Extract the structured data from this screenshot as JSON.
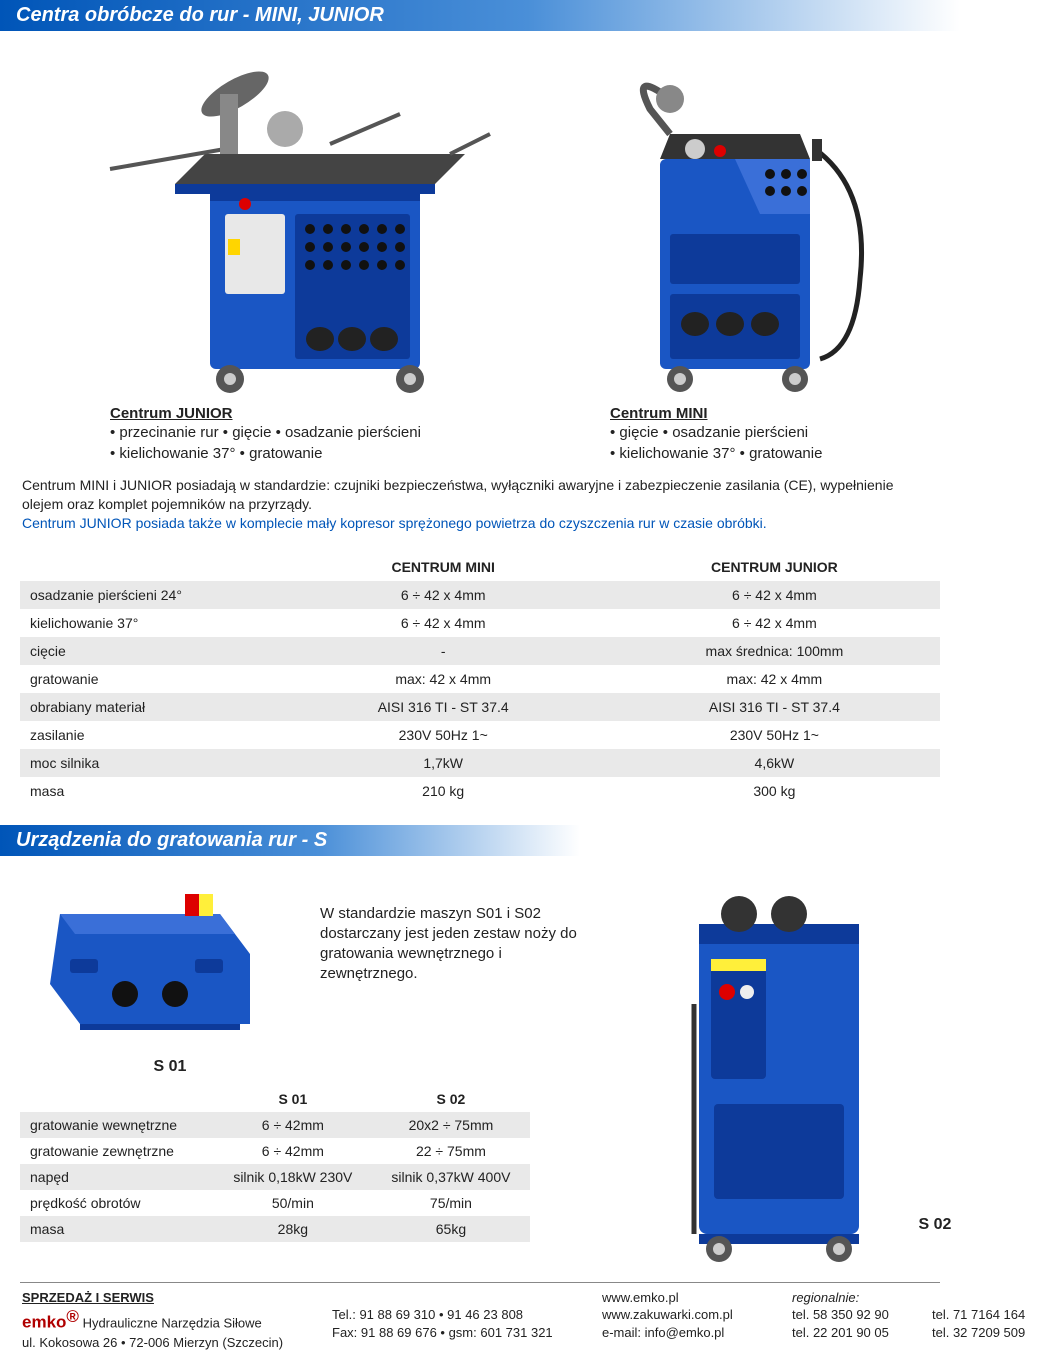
{
  "section1": {
    "header": "Centra obróbcze do rur - MINI, JUNIOR",
    "junior": {
      "title": "Centrum JUNIOR",
      "line1": "• przecinanie rur • gięcie • osadzanie pierścieni",
      "line2": "• kielichowanie 37° • gratowanie"
    },
    "mini": {
      "title": "Centrum  MINI",
      "line1": "• gięcie  • osadzanie pierścieni",
      "line2": "• kielichowanie 37° • gratowanie"
    },
    "intro_black1": "Centrum MINI i JUNIOR posiadają w standardzie: czujniki bezpieczeństwa, wyłączniki awaryjne i zabezpieczenie zasilania (CE), wypełnienie olejem oraz komplet pojemników na przyrządy.",
    "intro_blue": "Centrum JUNIOR posiada także w komplecie mały kopresor sprężonego powietrza do czyszczenia rur w czasie obróbki.",
    "table": {
      "head_mini": "CENTRUM MINI",
      "head_junior": "CENTRUM JUNIOR",
      "rows": [
        {
          "label": "osadzanie pierścieni 24°",
          "mini": "6 ÷ 42 x 4mm",
          "junior": "6 ÷ 42 x 4mm",
          "odd": true
        },
        {
          "label": "kielichowanie 37°",
          "mini": "6 ÷ 42 x 4mm",
          "junior": "6 ÷ 42 x 4mm",
          "odd": false
        },
        {
          "label": "cięcie",
          "mini": "-",
          "junior": "max średnica: 100mm",
          "odd": true
        },
        {
          "label": "gratowanie",
          "mini": "max: 42 x 4mm",
          "junior": "max: 42 x 4mm",
          "odd": false
        },
        {
          "label": "obrabiany materiał",
          "mini": "AISI 316 TI - ST 37.4",
          "junior": "AISI 316 TI - ST 37.4",
          "odd": true
        },
        {
          "label": "zasilanie",
          "mini": "230V 50Hz 1~",
          "junior": "230V 50Hz 1~",
          "odd": false
        },
        {
          "label": "moc silnika",
          "mini": "1,7kW",
          "junior": "4,6kW",
          "odd": true
        },
        {
          "label": "masa",
          "mini": "210 kg",
          "junior": "300 kg",
          "odd": false
        }
      ]
    }
  },
  "section2": {
    "header": "Urządzenia do gratowania rur - S",
    "desc": "W standardzie maszyn S01 i S02 dostarczany jest jeden zestaw noży do gratowania wewnętrznego i zewnętrznego.",
    "s01_label": "S 01",
    "s02_label": "S 02",
    "table": {
      "head_s01": "S 01",
      "head_s02": "S 02",
      "rows": [
        {
          "label": "gratowanie wewnętrzne",
          "s01": "6 ÷ 42mm",
          "s02": "20x2  ÷ 75mm",
          "odd": true
        },
        {
          "label": "gratowanie zewnętrzne",
          "s01": "6 ÷ 42mm",
          "s02": "22 ÷ 75mm",
          "odd": false
        },
        {
          "label": "napęd",
          "s01": "silnik 0,18kW 230V",
          "s02": "silnik 0,37kW 400V",
          "odd": true
        },
        {
          "label": "prędkość obrotów",
          "s01": "50/min",
          "s02": "75/min",
          "odd": false
        },
        {
          "label": "masa",
          "s01": "28kg",
          "s02": "65kg",
          "odd": true
        }
      ]
    }
  },
  "footer": {
    "sprzedaz": "SPRZEDAŻ I SERWIS",
    "emko": "emko",
    "emko_sup": "®",
    "emko_rest": " Hydrauliczne Narzędzia Siłowe",
    "addr": "ul. Kokosowa 26 • 72-006 Mierzyn (Szczecin)",
    "tel": "Tel.: 91 88 69 310 • 91 46 23 808",
    "fax": "Fax: 91 88 69 676 • gsm: 601 731 321",
    "www1": "www.emko.pl",
    "www2": "www.zakuwarki.com.pl",
    "email": "e-mail: info@emko.pl",
    "regionalnie": "regionalnie:",
    "r1": "tel. 58 350 92 90",
    "r2": "tel. 22 201 90 05",
    "r3": "tel. 71 7164 164",
    "r4": "tel. 32 7209 509"
  },
  "colors": {
    "machine_blue": "#1a56c4",
    "machine_blue_dark": "#0d3a9a",
    "gray": "#888888",
    "dark": "#333333"
  }
}
